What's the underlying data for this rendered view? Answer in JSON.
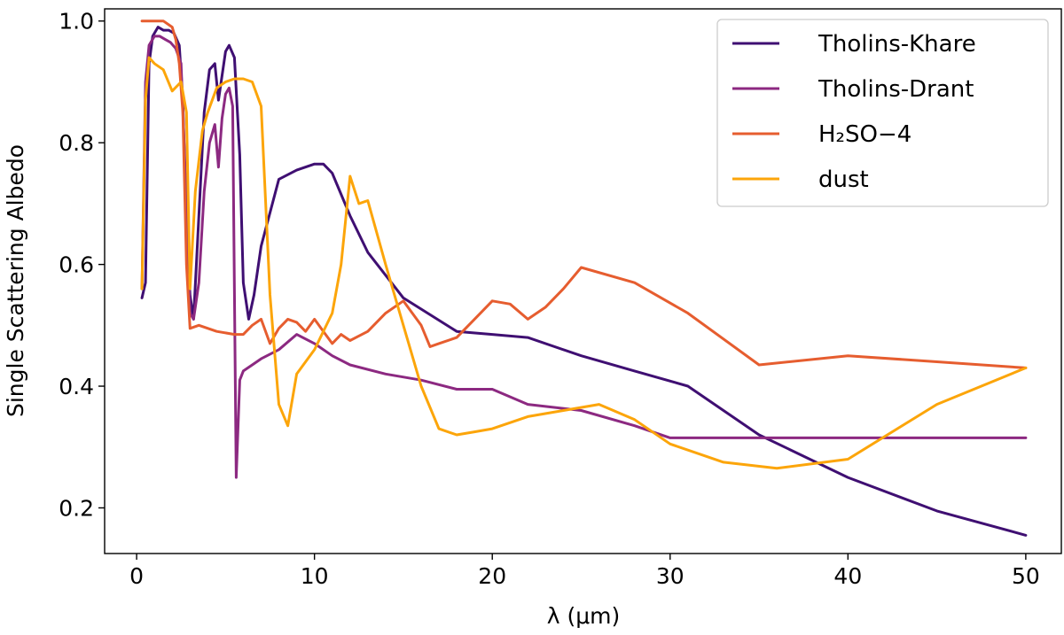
{
  "chart_data": {
    "type": "line",
    "title": "",
    "xlabel": "λ (μm)",
    "ylabel": "Single Scattering Albedo",
    "xlim": [
      -1.8,
      52.0
    ],
    "ylim": [
      0.125,
      1.02
    ],
    "xticks": [
      0,
      10,
      20,
      30,
      40,
      50
    ],
    "yticks": [
      0.2,
      0.4,
      0.6,
      0.8,
      1.0
    ],
    "xtick_labels": [
      "0",
      "10",
      "20",
      "30",
      "40",
      "50"
    ],
    "ytick_labels": [
      "0.2",
      "0.4",
      "0.6",
      "0.8",
      "1.0"
    ],
    "grid": false,
    "legend_position": "top-right",
    "series": [
      {
        "name": "Tholins-Khare",
        "color": "#3f0f72",
        "x": [
          0.3,
          0.5,
          0.7,
          0.9,
          1.2,
          1.5,
          1.8,
          2.1,
          2.4,
          2.6,
          2.8,
          3.0,
          3.2,
          3.5,
          3.8,
          4.1,
          4.4,
          4.6,
          4.8,
          5.0,
          5.2,
          5.5,
          5.8,
          6.0,
          6.3,
          6.6,
          7.0,
          8.0,
          9.0,
          10.0,
          10.5,
          11.0,
          12.0,
          13.0,
          15.0,
          18.0,
          20.0,
          22.0,
          25.0,
          28.0,
          31.0,
          35.0,
          40.0,
          45.0,
          50.0
        ],
        "values": [
          0.545,
          0.57,
          0.93,
          0.975,
          0.99,
          0.985,
          0.985,
          0.98,
          0.96,
          0.87,
          0.65,
          0.55,
          0.51,
          0.68,
          0.85,
          0.92,
          0.93,
          0.87,
          0.91,
          0.95,
          0.96,
          0.94,
          0.78,
          0.57,
          0.51,
          0.55,
          0.63,
          0.74,
          0.755,
          0.765,
          0.765,
          0.75,
          0.68,
          0.62,
          0.545,
          0.49,
          0.485,
          0.48,
          0.45,
          0.425,
          0.4,
          0.32,
          0.25,
          0.195,
          0.155
        ]
      },
      {
        "name": "Tholins-Drant",
        "color": "#8c2981",
        "x": [
          0.3,
          0.5,
          0.7,
          1.0,
          1.3,
          1.6,
          1.9,
          2.2,
          2.5,
          2.8,
          3.0,
          3.2,
          3.5,
          3.8,
          4.1,
          4.4,
          4.6,
          4.8,
          5.0,
          5.2,
          5.4,
          5.6,
          5.8,
          6.0,
          6.5,
          7.0,
          8.0,
          9.0,
          10.0,
          11.0,
          12.0,
          14.0,
          16.0,
          18.0,
          20.0,
          22.0,
          25.0,
          28.0,
          30.0,
          35.0,
          40.0,
          45.0,
          50.0
        ],
        "values": [
          0.56,
          0.9,
          0.96,
          0.975,
          0.975,
          0.97,
          0.965,
          0.955,
          0.93,
          0.7,
          0.52,
          0.51,
          0.57,
          0.72,
          0.8,
          0.83,
          0.76,
          0.84,
          0.88,
          0.89,
          0.86,
          0.25,
          0.41,
          0.425,
          0.435,
          0.445,
          0.46,
          0.485,
          0.47,
          0.45,
          0.435,
          0.42,
          0.41,
          0.395,
          0.395,
          0.37,
          0.36,
          0.335,
          0.315,
          0.315,
          0.315,
          0.315,
          0.315
        ]
      },
      {
        "name": "H₂SO−4",
        "color": "#e65d2f",
        "x": [
          0.3,
          0.5,
          1.0,
          1.5,
          2.0,
          2.2,
          2.4,
          2.6,
          2.8,
          3.0,
          3.5,
          4.5,
          5.5,
          6.0,
          6.5,
          7.0,
          7.5,
          8.0,
          8.5,
          9.0,
          9.5,
          10.0,
          10.5,
          11.0,
          11.5,
          12.0,
          13.0,
          14.0,
          15.0,
          16.0,
          16.5,
          17.0,
          18.0,
          19.0,
          20.0,
          21.0,
          22.0,
          23.0,
          24.0,
          25.0,
          28.0,
          31.0,
          35.0,
          40.0,
          45.0,
          50.0
        ],
        "values": [
          1.0,
          1.0,
          1.0,
          1.0,
          0.99,
          0.97,
          0.93,
          0.85,
          0.6,
          0.495,
          0.5,
          0.49,
          0.485,
          0.485,
          0.5,
          0.51,
          0.47,
          0.495,
          0.51,
          0.505,
          0.49,
          0.51,
          0.49,
          0.47,
          0.485,
          0.475,
          0.49,
          0.52,
          0.54,
          0.5,
          0.465,
          0.47,
          0.48,
          0.51,
          0.54,
          0.535,
          0.51,
          0.53,
          0.56,
          0.595,
          0.57,
          0.52,
          0.435,
          0.45,
          0.44,
          0.43
        ]
      },
      {
        "name": "dust",
        "color": "#fca50a",
        "x": [
          0.3,
          0.5,
          0.7,
          1.0,
          1.5,
          2.0,
          2.5,
          2.8,
          3.0,
          3.3,
          3.7,
          4.0,
          4.5,
          5.0,
          5.5,
          6.0,
          6.5,
          7.0,
          7.5,
          8.0,
          8.5,
          9.0,
          10.0,
          11.0,
          11.5,
          12.0,
          12.5,
          13.0,
          14.0,
          15.0,
          16.0,
          17.0,
          18.0,
          19.0,
          20.0,
          22.0,
          24.0,
          26.0,
          28.0,
          30.0,
          33.0,
          36.0,
          40.0,
          45.0,
          50.0
        ],
        "values": [
          0.56,
          0.87,
          0.94,
          0.93,
          0.92,
          0.885,
          0.9,
          0.85,
          0.56,
          0.72,
          0.82,
          0.85,
          0.89,
          0.9,
          0.905,
          0.905,
          0.9,
          0.86,
          0.55,
          0.37,
          0.335,
          0.42,
          0.46,
          0.52,
          0.6,
          0.745,
          0.7,
          0.705,
          0.6,
          0.5,
          0.4,
          0.33,
          0.32,
          0.325,
          0.33,
          0.35,
          0.36,
          0.37,
          0.345,
          0.305,
          0.275,
          0.265,
          0.28,
          0.37,
          0.43
        ]
      }
    ]
  }
}
